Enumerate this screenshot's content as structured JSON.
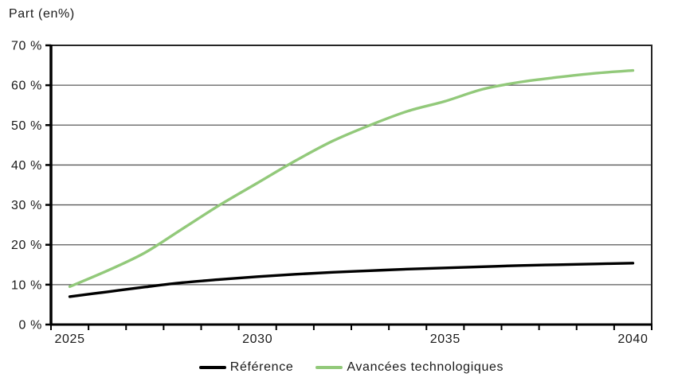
{
  "chart_data": {
    "type": "line",
    "title": "Part (en%)",
    "categories": [
      "2025",
      "2026",
      "2027",
      "2028",
      "2029",
      "2030",
      "2031",
      "2032",
      "2033",
      "2034",
      "2035",
      "2036",
      "2037",
      "2038",
      "2039",
      "2040"
    ],
    "x_tick_labels": [
      {
        "index": 0,
        "label": "2025"
      },
      {
        "index": 5,
        "label": "2030"
      },
      {
        "index": 10,
        "label": "2035"
      },
      {
        "index": 15,
        "label": "2040"
      }
    ],
    "series": [
      {
        "name": "Référence",
        "color": "#000000",
        "values": [
          7,
          8.2,
          9.4,
          10.5,
          11.3,
          12,
          12.6,
          13.1,
          13.5,
          13.9,
          14.2,
          14.5,
          14.8,
          15,
          15.2,
          15.4
        ]
      },
      {
        "name": "Avancées technologiques",
        "color": "#92C97A",
        "values": [
          9.5,
          13.5,
          18,
          24,
          30,
          35.5,
          41,
          46,
          50,
          53.5,
          56,
          59,
          60.8,
          62,
          63,
          63.7
        ]
      }
    ],
    "ylim": [
      0,
      70
    ],
    "ytick_step": 10,
    "ytick_suffix": " %",
    "grid": true,
    "legend_position": "bottom",
    "colors": {
      "gridline": "#595959",
      "axis": "#000000",
      "border": "#262626",
      "text": "#1a1a1a",
      "background": "#ffffff"
    }
  }
}
